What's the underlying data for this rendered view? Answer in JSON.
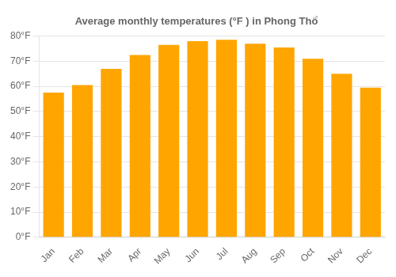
{
  "chart_data": {
    "type": "bar",
    "title": "Average monthly temperatures (°F ) in Phong Thổ",
    "categories": [
      "Jan",
      "Feb",
      "Mar",
      "Apr",
      "May",
      "Jun",
      "Jul",
      "Aug",
      "Sep",
      "Oct",
      "Nov",
      "Dec"
    ],
    "values": [
      57.5,
      60.5,
      67.0,
      72.5,
      76.5,
      78.0,
      78.5,
      77.0,
      75.5,
      71.0,
      65.0,
      59.5
    ],
    "color": "#FFA500",
    "ylim": [
      0,
      80
    ],
    "yticks": [
      {
        "value": 0,
        "label": "0°F"
      },
      {
        "value": 10,
        "label": "10°F"
      },
      {
        "value": 20,
        "label": "20°F"
      },
      {
        "value": 30,
        "label": "30°F"
      },
      {
        "value": 40,
        "label": "40°F"
      },
      {
        "value": 50,
        "label": "50°F"
      },
      {
        "value": 60,
        "label": "60°F"
      },
      {
        "value": 70,
        "label": "70°F"
      },
      {
        "value": 80,
        "label": "80°F"
      }
    ],
    "grid": true
  }
}
